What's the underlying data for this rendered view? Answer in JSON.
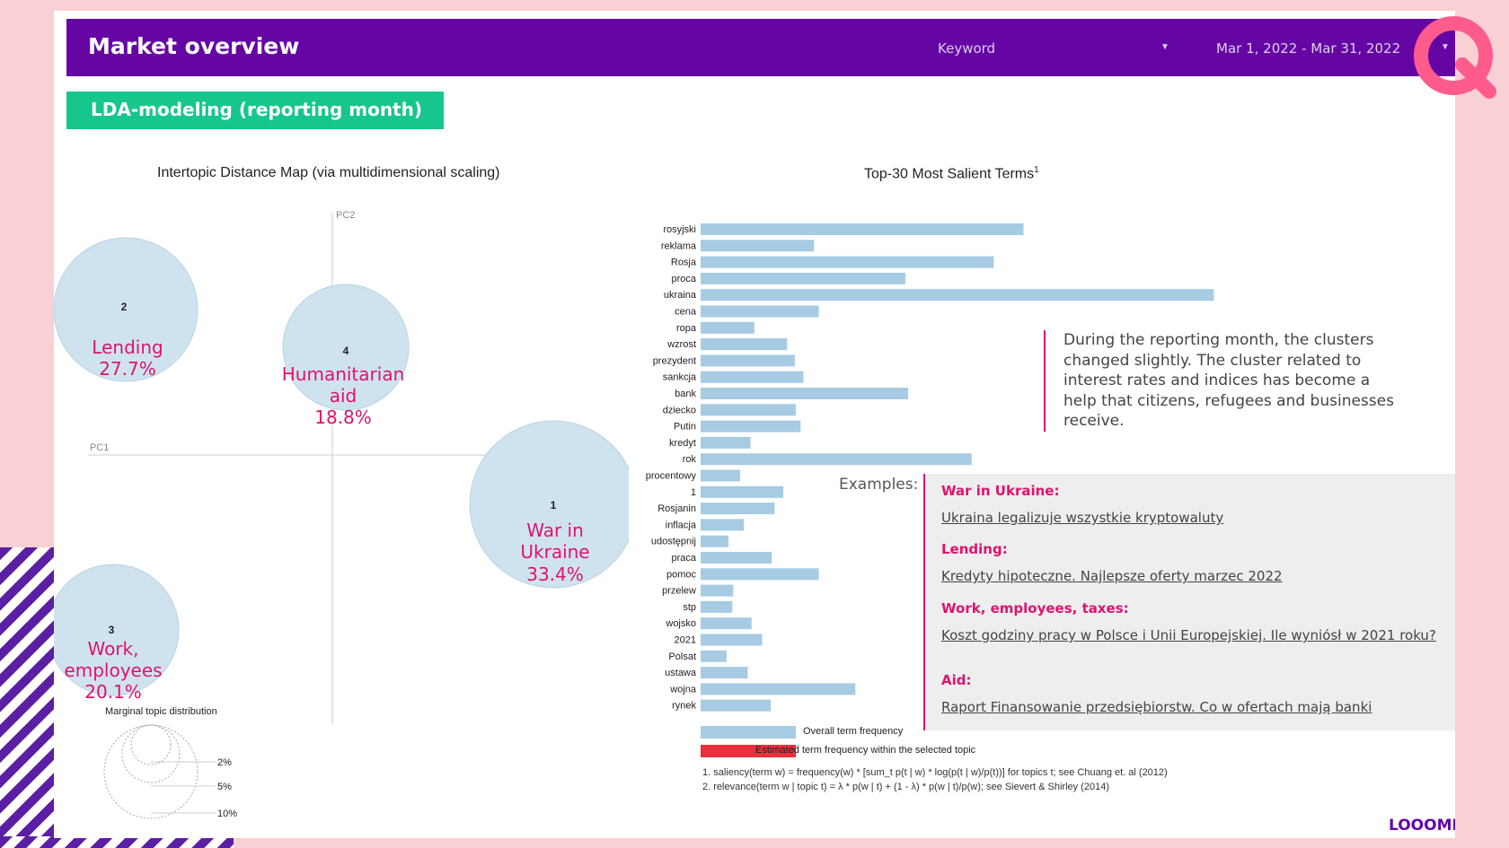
{
  "header": {
    "title": "Market overview",
    "keyword_label": "Keyword",
    "date_range": "Mar 1, 2022 - Mar 31, 2022",
    "dropdown_arrow": "▼"
  },
  "section_tag": "LDA-modeling (reporting month)",
  "intertopic_map": {
    "title": "Intertopic Distance Map (via multidimensional scaling)",
    "axis_y": "PC2",
    "axis_x": "PC1",
    "topics": [
      {
        "id": "2",
        "label_lines": [
          "Lending"
        ],
        "share": "27.7%"
      },
      {
        "id": "4",
        "label_lines": [
          "Humanitarian",
          "aid"
        ],
        "share": "18.8%"
      },
      {
        "id": "1",
        "label_lines": [
          "War in",
          "Ukraine"
        ],
        "share": "33.4%"
      },
      {
        "id": "3",
        "label_lines": [
          "Work,",
          "employees"
        ],
        "share": "20.1%"
      }
    ],
    "marginal_title": "Marginal topic distribution",
    "marginal_levels": [
      "2%",
      "5%",
      "10%"
    ]
  },
  "chart_data": {
    "type": "bar",
    "title": "Top-30 Most Salient Terms",
    "title_superscript": "1",
    "orientation": "horizontal",
    "categories": [
      "rosyjski",
      "reklama",
      "Rosja",
      "proca",
      "ukraina",
      "cena",
      "ropa",
      "wzrost",
      "prezydent",
      "sankcja",
      "bank",
      "dziecko",
      "Putin",
      "kredyt",
      "rok",
      "procentowy",
      "1",
      "Rosjanin",
      "inflacja",
      "udostępnij",
      "praca",
      "pomoc",
      "przelew",
      "stp",
      "wojsko",
      "2021",
      "Polsat",
      "ustawa",
      "wojna",
      "rynek"
    ],
    "series": [
      {
        "name": "Overall term frequency",
        "color": "#a6cbe3",
        "values": [
          336,
          118,
          305,
          213,
          534,
          123,
          56,
          90,
          98,
          107,
          216,
          99,
          104,
          52,
          282,
          41,
          86,
          77,
          45,
          29,
          74,
          123,
          34,
          33,
          53,
          64,
          27,
          49,
          161,
          73
        ]
      }
    ],
    "legend": [
      "Overall term frequency",
      "Estimated term frequency within the selected topic"
    ],
    "legend_colors": [
      "#a6cbe3",
      "#e8303e"
    ],
    "footnotes": [
      "1. saliency(term w) = frequency(w) * [sum_t p(t | w) * log(p(t | w)/p(t))] for topics t; see Chuang et. al (2012)",
      "2. relevance(term w | topic t) = λ * p(w | t) + (1 - λ) * p(w | t)/p(w); see Sievert & Shirley (2014)"
    ]
  },
  "description": "During the reporting month, the clusters changed slightly. The cluster related to interest rates and indices has become a help that citizens, refugees and businesses receive.",
  "examples": {
    "label": "Examples:",
    "items": [
      {
        "category": "War in Ukraine:",
        "link": "Ukraina legalizuje wszystkie kryptowaluty"
      },
      {
        "category": "Lending:",
        "link": "Kredyty hipoteczne. Najlepsze oferty marzec 2022"
      },
      {
        "category": "Work, employees, taxes:",
        "link": "Koszt godziny pracy w Polsce i Unii Europejskiej. Ile wyniósł w 2021 roku?"
      },
      {
        "category": "Aid:",
        "link": "Raport Finansowanie przedsiębiorstw. Co w ofertach mają banki"
      }
    ]
  },
  "logo_text": "LOOOME",
  "colors": {
    "header_bg": "#6506a4",
    "section_tag_bg": "#17c68c",
    "accent_pink": "#e0126e",
    "bubble_fill": "#cfe3ef",
    "bar_color": "#a6cbe3"
  }
}
